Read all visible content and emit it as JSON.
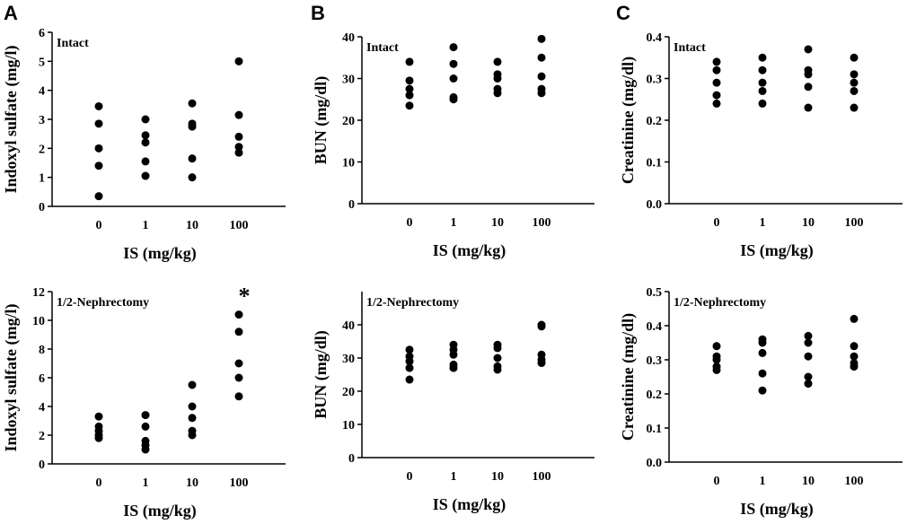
{
  "figure": {
    "panel_letters": [
      "A",
      "B",
      "C"
    ]
  },
  "chart_data": [
    {
      "type": "scatter",
      "panel": "A",
      "label": "Intact",
      "categories": [
        "0",
        "1",
        "10",
        "100"
      ],
      "xlabel": "IS (mg/kg)",
      "ylabel": "Indoxyl sulfate (mg/l)",
      "ylim": [
        0,
        6
      ],
      "yticks": [
        "0",
        "1",
        "2",
        "3",
        "4",
        "5",
        "6"
      ],
      "points": [
        [
          0.35,
          1.4,
          2.0,
          2.85,
          3.45
        ],
        [
          1.05,
          1.55,
          2.2,
          2.45,
          3.0
        ],
        [
          1.0,
          1.65,
          2.75,
          2.85,
          3.55
        ],
        [
          1.85,
          2.05,
          2.4,
          3.15,
          5.0
        ]
      ],
      "annotation": ""
    },
    {
      "type": "scatter",
      "panel": "B",
      "label": "Intact",
      "categories": [
        "0",
        "1",
        "10",
        "100"
      ],
      "xlabel": "IS (mg/kg)",
      "ylabel": "BUN (mg/dl)",
      "ylim": [
        0,
        40
      ],
      "yticks": [
        "0",
        "10",
        "20",
        "30",
        "40"
      ],
      "points": [
        [
          23.5,
          26.0,
          27.5,
          29.5,
          34.0
        ],
        [
          25.0,
          25.5,
          30.0,
          33.5,
          37.5
        ],
        [
          26.5,
          27.5,
          30.0,
          31.0,
          34.0
        ],
        [
          26.5,
          27.5,
          30.5,
          35.0,
          39.5
        ]
      ],
      "annotation": ""
    },
    {
      "type": "scatter",
      "panel": "C",
      "label": "Intact",
      "categories": [
        "0",
        "1",
        "10",
        "100"
      ],
      "xlabel": "IS (mg/kg)",
      "ylabel": "Creatinine (mg/dl)",
      "ylim": [
        0,
        0.4
      ],
      "yticks": [
        "0.0",
        "0.1",
        "0.2",
        "0.3",
        "0.4"
      ],
      "points": [
        [
          0.24,
          0.26,
          0.29,
          0.32,
          0.34
        ],
        [
          0.24,
          0.27,
          0.29,
          0.32,
          0.35
        ],
        [
          0.23,
          0.28,
          0.31,
          0.32,
          0.37
        ],
        [
          0.23,
          0.27,
          0.29,
          0.31,
          0.35
        ]
      ],
      "annotation": ""
    },
    {
      "type": "scatter",
      "panel": "A",
      "label": "1/2-Nephrectomy",
      "categories": [
        "0",
        "1",
        "10",
        "100"
      ],
      "xlabel": "IS (mg/kg)",
      "ylabel": "Indoxyl sulfate (mg/l)",
      "ylim": [
        0,
        12
      ],
      "yticks": [
        "0",
        "2",
        "4",
        "6",
        "8",
        "10",
        "12"
      ],
      "points": [
        [
          1.8,
          2.0,
          2.3,
          2.6,
          3.3
        ],
        [
          1.0,
          1.3,
          1.6,
          2.6,
          3.4
        ],
        [
          2.0,
          2.3,
          3.2,
          4.0,
          5.5
        ],
        [
          4.7,
          6.0,
          7.0,
          9.2,
          10.4
        ]
      ],
      "annotation": "*"
    },
    {
      "type": "scatter",
      "panel": "B",
      "label": "1/2-Nephrectomy",
      "categories": [
        "0",
        "1",
        "10",
        "100"
      ],
      "xlabel": "IS (mg/kg)",
      "ylabel": "BUN (mg/dl)",
      "ylim": [
        0,
        50
      ],
      "yticks": [
        "0",
        "10",
        "20",
        "30",
        "40"
      ],
      "points": [
        [
          23.5,
          27.0,
          29.0,
          30.5,
          32.5
        ],
        [
          27.0,
          28.0,
          31.0,
          32.5,
          34.0
        ],
        [
          26.5,
          27.5,
          30.0,
          33.0,
          34.0
        ],
        [
          28.5,
          29.5,
          31.0,
          39.5,
          40.0
        ]
      ],
      "annotation": ""
    },
    {
      "type": "scatter",
      "panel": "C",
      "label": "1/2-Nephrectomy",
      "categories": [
        "0",
        "1",
        "10",
        "100"
      ],
      "xlabel": "IS (mg/kg)",
      "ylabel": "Creatinine (mg/dl)",
      "ylim": [
        0,
        0.5
      ],
      "yticks": [
        "0.0",
        "0.1",
        "0.2",
        "0.3",
        "0.4",
        "0.5"
      ],
      "points": [
        [
          0.27,
          0.28,
          0.3,
          0.31,
          0.34
        ],
        [
          0.21,
          0.26,
          0.32,
          0.35,
          0.36
        ],
        [
          0.23,
          0.25,
          0.31,
          0.35,
          0.37
        ],
        [
          0.28,
          0.29,
          0.31,
          0.34,
          0.42
        ]
      ],
      "annotation": ""
    }
  ]
}
